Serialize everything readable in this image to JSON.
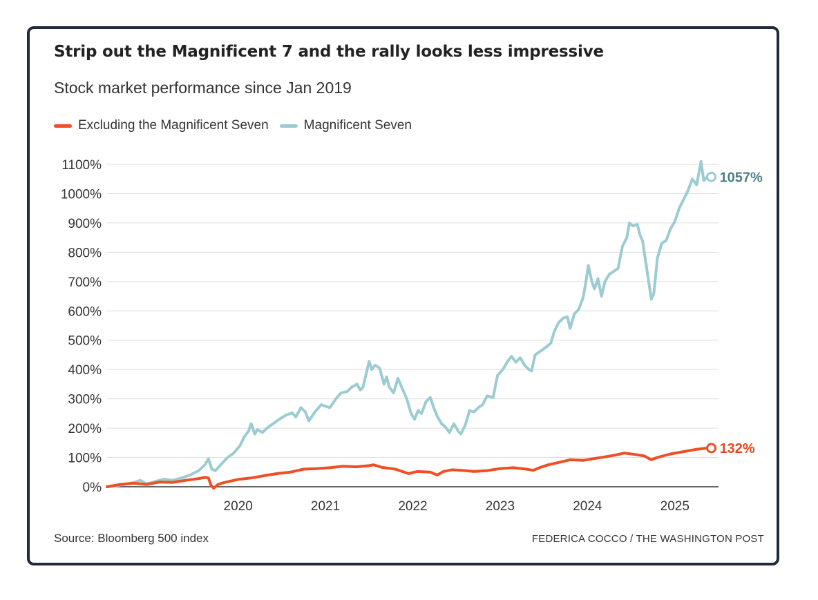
{
  "title": "Strip out the Magnificent 7 and the rally looks less impressive",
  "subtitle": "Stock market performance since Jan 2019",
  "source": "Source: Bloomberg 500 index",
  "credit": "FEDERICA COCCO / THE WASHINGTON POST",
  "legend": [
    {
      "label": "Excluding the Magnificent Seven",
      "color": "#f04e23"
    },
    {
      "label": "Magnificent Seven",
      "color": "#9ccbd2"
    }
  ],
  "chart_data": {
    "type": "line",
    "title": "Strip out the Magnificent 7 and the rally looks less impressive",
    "xlabel": "",
    "ylabel": "",
    "xlim": [
      2019.0,
      2026.0
    ],
    "ylim": [
      0,
      1100
    ],
    "grid": true,
    "y_ticks": [
      {
        "value": 0,
        "label": "0%"
      },
      {
        "value": 100,
        "label": "100%"
      },
      {
        "value": 200,
        "label": "200%"
      },
      {
        "value": 300,
        "label": "300%"
      },
      {
        "value": 400,
        "label": "400%"
      },
      {
        "value": 500,
        "label": "500%"
      },
      {
        "value": 600,
        "label": "600%"
      },
      {
        "value": 700,
        "label": "700%"
      },
      {
        "value": 800,
        "label": "800%"
      },
      {
        "value": 900,
        "label": "900%"
      },
      {
        "value": 1000,
        "label": "1000%"
      },
      {
        "value": 1100,
        "label": "1100%"
      }
    ],
    "x_ticks": [
      {
        "value": 2020,
        "label": "2020"
      },
      {
        "value": 2021,
        "label": "2021"
      },
      {
        "value": 2022,
        "label": "2022"
      },
      {
        "value": 2023,
        "label": "2023"
      },
      {
        "value": 2024,
        "label": "2024"
      },
      {
        "value": 2025,
        "label": "2025"
      }
    ],
    "series": [
      {
        "name": "Magnificent Seven",
        "color": "#9ccbd2",
        "label_color": "#4e7f86",
        "end_label": "1057%",
        "points": [
          [
            2019.0,
            0
          ],
          [
            2019.1,
            3
          ],
          [
            2019.2,
            8
          ],
          [
            2019.3,
            14
          ],
          [
            2019.38,
            22
          ],
          [
            2019.45,
            10
          ],
          [
            2019.55,
            18
          ],
          [
            2019.65,
            26
          ],
          [
            2019.75,
            22
          ],
          [
            2019.85,
            30
          ],
          [
            2019.95,
            40
          ],
          [
            2020.05,
            55
          ],
          [
            2020.12,
            75
          ],
          [
            2020.16,
            95
          ],
          [
            2020.2,
            60
          ],
          [
            2020.24,
            55
          ],
          [
            2020.3,
            75
          ],
          [
            2020.38,
            100
          ],
          [
            2020.45,
            115
          ],
          [
            2020.52,
            140
          ],
          [
            2020.57,
            170
          ],
          [
            2020.62,
            190
          ],
          [
            2020.65,
            215
          ],
          [
            2020.69,
            180
          ],
          [
            2020.72,
            195
          ],
          [
            2020.78,
            185
          ],
          [
            2020.83,
            200
          ],
          [
            2020.9,
            215
          ],
          [
            2020.97,
            230
          ],
          [
            2021.05,
            245
          ],
          [
            2021.12,
            252
          ],
          [
            2021.16,
            238
          ],
          [
            2021.22,
            270
          ],
          [
            2021.27,
            255
          ],
          [
            2021.31,
            225
          ],
          [
            2021.38,
            255
          ],
          [
            2021.45,
            280
          ],
          [
            2021.5,
            275
          ],
          [
            2021.55,
            270
          ],
          [
            2021.62,
            300
          ],
          [
            2021.68,
            320
          ],
          [
            2021.75,
            325
          ],
          [
            2021.8,
            340
          ],
          [
            2021.86,
            350
          ],
          [
            2021.9,
            330
          ],
          [
            2021.93,
            340
          ],
          [
            2021.97,
            390
          ],
          [
            2022.0,
            428
          ],
          [
            2022.03,
            400
          ],
          [
            2022.07,
            415
          ],
          [
            2022.12,
            405
          ],
          [
            2022.17,
            350
          ],
          [
            2022.2,
            375
          ],
          [
            2022.23,
            340
          ],
          [
            2022.28,
            320
          ],
          [
            2022.33,
            370
          ],
          [
            2022.38,
            335
          ],
          [
            2022.43,
            300
          ],
          [
            2022.48,
            250
          ],
          [
            2022.52,
            230
          ],
          [
            2022.56,
            260
          ],
          [
            2022.6,
            250
          ],
          [
            2022.65,
            290
          ],
          [
            2022.7,
            305
          ],
          [
            2022.74,
            270
          ],
          [
            2022.78,
            240
          ],
          [
            2022.83,
            215
          ],
          [
            2022.87,
            205
          ],
          [
            2022.92,
            185
          ],
          [
            2022.97,
            215
          ],
          [
            2023.02,
            190
          ],
          [
            2023.05,
            180
          ],
          [
            2023.1,
            210
          ],
          [
            2023.15,
            260
          ],
          [
            2023.2,
            255
          ],
          [
            2023.25,
            270
          ],
          [
            2023.3,
            280
          ],
          [
            2023.35,
            310
          ],
          [
            2023.42,
            305
          ],
          [
            2023.47,
            380
          ],
          [
            2023.53,
            400
          ],
          [
            2023.58,
            425
          ],
          [
            2023.63,
            445
          ],
          [
            2023.68,
            425
          ],
          [
            2023.73,
            440
          ],
          [
            2023.78,
            415
          ],
          [
            2023.83,
            400
          ],
          [
            2023.86,
            395
          ],
          [
            2023.9,
            450
          ],
          [
            2023.95,
            460
          ],
          [
            2024.02,
            475
          ],
          [
            2024.08,
            490
          ],
          [
            2024.12,
            530
          ],
          [
            2024.17,
            560
          ],
          [
            2024.22,
            575
          ],
          [
            2024.27,
            580
          ],
          [
            2024.3,
            540
          ],
          [
            2024.35,
            590
          ],
          [
            2024.4,
            605
          ],
          [
            2024.45,
            645
          ],
          [
            2024.48,
            695
          ],
          [
            2024.51,
            755
          ],
          [
            2024.55,
            700
          ],
          [
            2024.58,
            675
          ],
          [
            2024.62,
            710
          ],
          [
            2024.66,
            650
          ],
          [
            2024.7,
            700
          ],
          [
            2024.75,
            725
          ],
          [
            2024.8,
            735
          ],
          [
            2024.85,
            745
          ],
          [
            2024.9,
            820
          ],
          [
            2024.95,
            850
          ],
          [
            2024.98,
            900
          ],
          [
            2025.02,
            890
          ],
          [
            2025.07,
            895
          ],
          [
            2025.1,
            860
          ],
          [
            2025.13,
            840
          ],
          [
            2025.17,
            760
          ],
          [
            2025.2,
            700
          ],
          [
            2025.23,
            640
          ],
          [
            2025.26,
            660
          ],
          [
            2025.3,
            780
          ],
          [
            2025.35,
            830
          ],
          [
            2025.4,
            840
          ],
          [
            2025.45,
            880
          ],
          [
            2025.5,
            905
          ],
          [
            2025.55,
            950
          ],
          [
            2025.6,
            980
          ],
          [
            2025.65,
            1010
          ],
          [
            2025.7,
            1050
          ],
          [
            2025.75,
            1030
          ],
          [
            2025.8,
            1110
          ],
          [
            2025.83,
            1045
          ],
          [
            2025.87,
            1057
          ]
        ]
      },
      {
        "name": "Excluding the Magnificent Seven",
        "color": "#f04e23",
        "label_color": "#e24a21",
        "end_label": "132%",
        "points": [
          [
            2019.0,
            0
          ],
          [
            2019.15,
            8
          ],
          [
            2019.3,
            12
          ],
          [
            2019.45,
            8
          ],
          [
            2019.6,
            16
          ],
          [
            2019.75,
            15
          ],
          [
            2019.9,
            22
          ],
          [
            2020.05,
            28
          ],
          [
            2020.12,
            32
          ],
          [
            2020.16,
            30
          ],
          [
            2020.19,
            5
          ],
          [
            2020.22,
            -5
          ],
          [
            2020.27,
            8
          ],
          [
            2020.35,
            15
          ],
          [
            2020.5,
            25
          ],
          [
            2020.65,
            30
          ],
          [
            2020.8,
            38
          ],
          [
            2020.95,
            45
          ],
          [
            2021.1,
            50
          ],
          [
            2021.25,
            60
          ],
          [
            2021.4,
            62
          ],
          [
            2021.55,
            65
          ],
          [
            2021.7,
            70
          ],
          [
            2021.85,
            68
          ],
          [
            2022.0,
            72
          ],
          [
            2022.05,
            75
          ],
          [
            2022.15,
            66
          ],
          [
            2022.3,
            60
          ],
          [
            2022.38,
            52
          ],
          [
            2022.45,
            45
          ],
          [
            2022.55,
            52
          ],
          [
            2022.7,
            50
          ],
          [
            2022.78,
            40
          ],
          [
            2022.85,
            52
          ],
          [
            2022.95,
            58
          ],
          [
            2023.1,
            55
          ],
          [
            2023.2,
            52
          ],
          [
            2023.35,
            55
          ],
          [
            2023.5,
            62
          ],
          [
            2023.65,
            65
          ],
          [
            2023.8,
            60
          ],
          [
            2023.88,
            56
          ],
          [
            2023.95,
            65
          ],
          [
            2024.05,
            75
          ],
          [
            2024.2,
            85
          ],
          [
            2024.3,
            92
          ],
          [
            2024.45,
            90
          ],
          [
            2024.55,
            95
          ],
          [
            2024.7,
            102
          ],
          [
            2024.82,
            108
          ],
          [
            2024.92,
            115
          ],
          [
            2025.05,
            110
          ],
          [
            2025.15,
            105
          ],
          [
            2025.23,
            92
          ],
          [
            2025.3,
            100
          ],
          [
            2025.45,
            112
          ],
          [
            2025.6,
            120
          ],
          [
            2025.75,
            128
          ],
          [
            2025.87,
            132
          ]
        ]
      }
    ]
  }
}
